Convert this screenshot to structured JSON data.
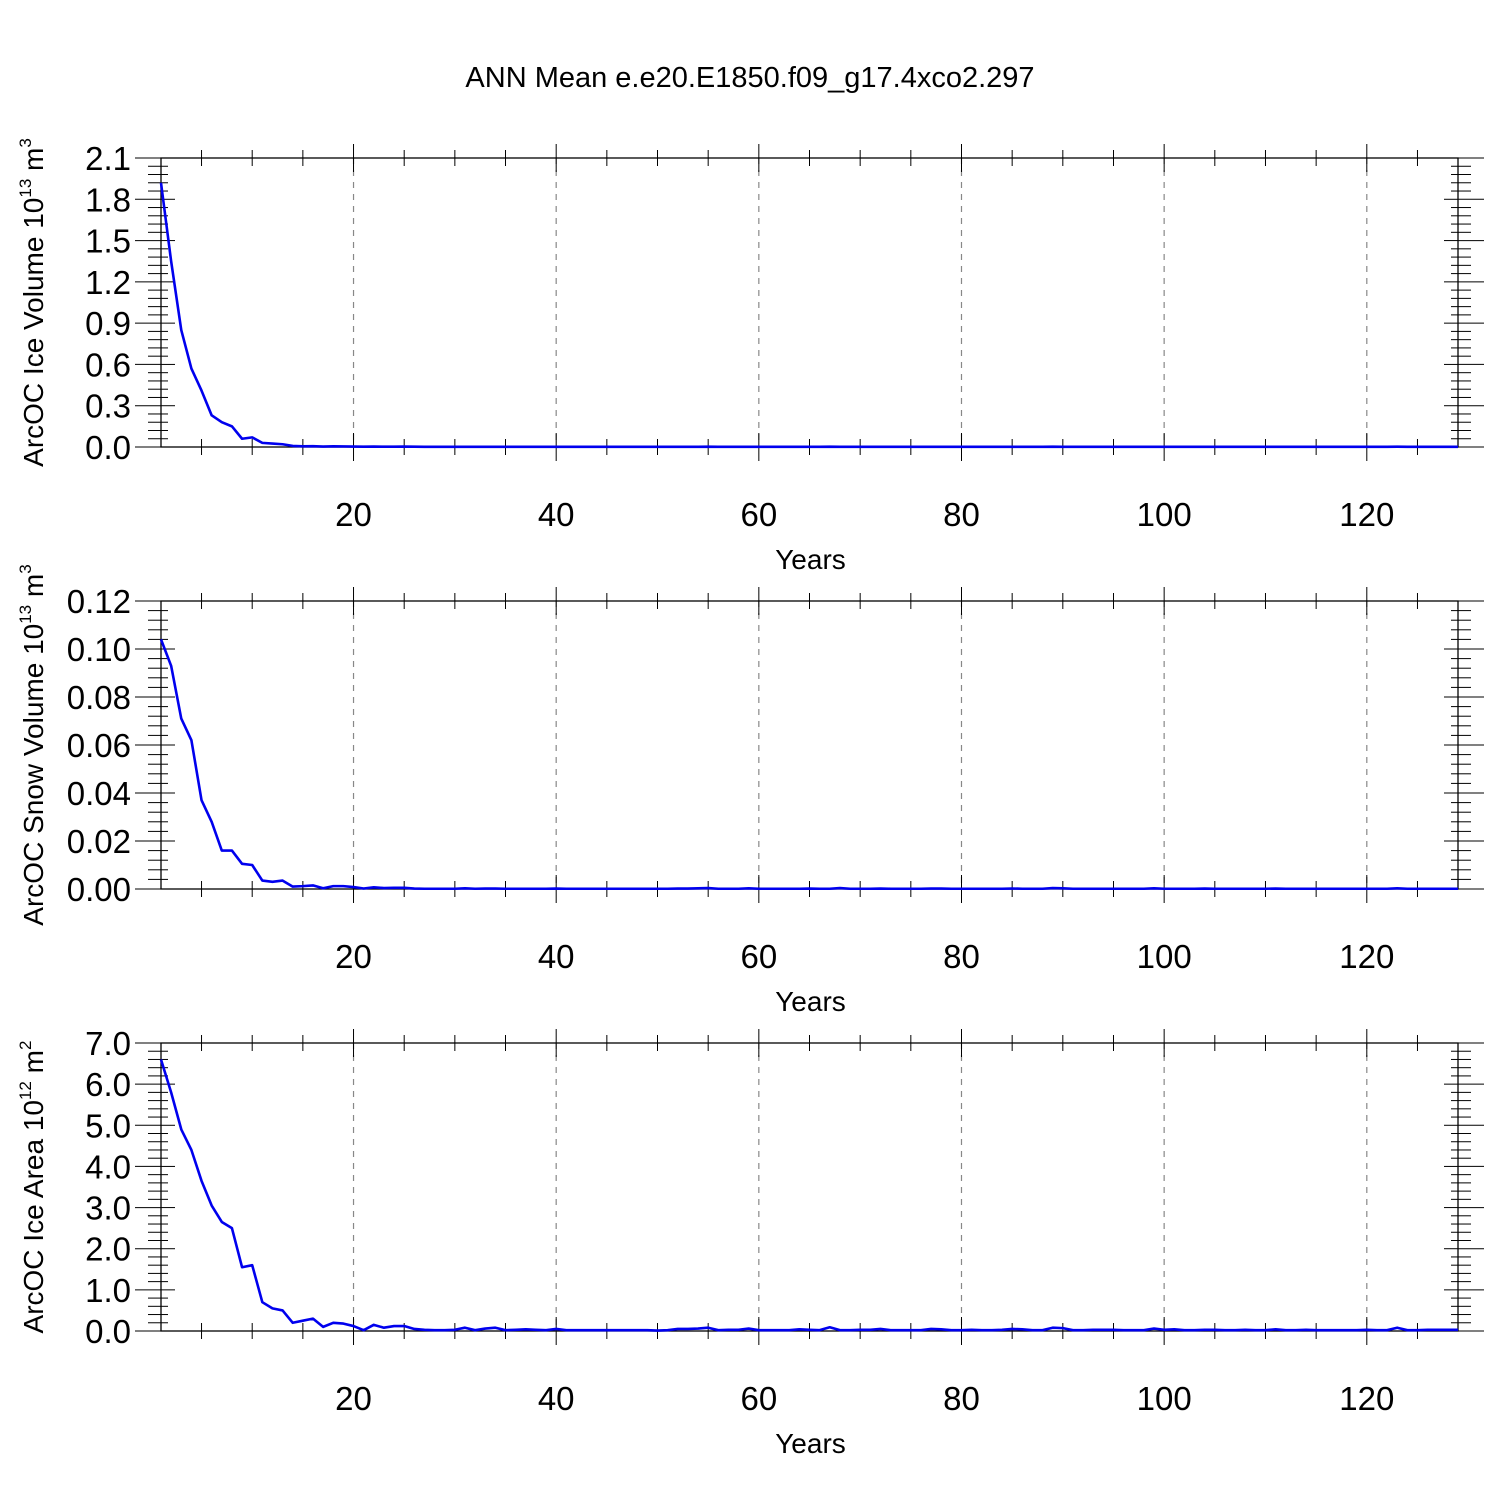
{
  "title": "ANN Mean e.e20.E1850.f09_g17.4xco2.297",
  "chart_data": [
    {
      "type": "line",
      "xlabel": "Years",
      "ylabel": {
        "text": "ArcOC Ice Volume 10",
        "exp": "13",
        "unit": " m",
        "unit_exp": "3"
      },
      "xlim": [
        1,
        129
      ],
      "ylim": [
        0,
        2.1
      ],
      "xticks": [
        20,
        40,
        60,
        80,
        100,
        120
      ],
      "yticks": [
        "0.0",
        "0.3",
        "0.6",
        "0.9",
        "1.2",
        "1.5",
        "1.8",
        "2.1"
      ],
      "grid": "vertical dashed at major x ticks",
      "color": "#0000ee",
      "x_start": 1,
      "values": [
        1.92,
        1.35,
        0.85,
        0.57,
        0.41,
        0.23,
        0.18,
        0.15,
        0.06,
        0.07,
        0.03,
        0.025,
        0.02,
        0.008,
        0.005,
        0.006,
        0.003,
        0.005,
        0.004,
        0.003,
        0.002,
        0.003,
        0.002,
        0.002,
        0.003,
        0.002,
        0.001,
        0.001,
        0.001,
        0.001,
        0.001,
        0.001,
        0.001,
        0.001,
        0.001,
        0.001,
        0.001,
        0.001,
        0.001,
        0.001,
        0.001,
        0.001,
        0.001,
        0.001,
        0.001,
        0.001,
        0.001,
        0.001,
        0.001,
        0.001,
        0.001,
        0.001,
        0.001,
        0.001,
        0.002,
        0.001,
        0.001,
        0.001,
        0.001,
        0.001,
        0.001,
        0.001,
        0.001,
        0.001,
        0.001,
        0.001,
        0.002,
        0.001,
        0.001,
        0.001,
        0.001,
        0.001,
        0.001,
        0.001,
        0.001,
        0.001,
        0.001,
        0.001,
        0.001,
        0.001,
        0.001,
        0.001,
        0.001,
        0.001,
        0.001,
        0.001,
        0.001,
        0.001,
        0.002,
        0.001,
        0.001,
        0.001,
        0.001,
        0.001,
        0.001,
        0.001,
        0.001,
        0.001,
        0.001,
        0.001,
        0.001,
        0.001,
        0.001,
        0.001,
        0.001,
        0.001,
        0.001,
        0.001,
        0.001,
        0.001,
        0.001,
        0.001,
        0.001,
        0.001,
        0.001,
        0.001,
        0.001,
        0.001,
        0.001,
        0.001,
        0.001,
        0.001,
        0.002,
        0.001,
        0.001,
        0.001,
        0.001,
        0.001,
        0.001
      ]
    },
    {
      "type": "line",
      "xlabel": "Years",
      "ylabel": {
        "text": "ArcOC Snow Volume 10",
        "exp": "13",
        "unit": " m",
        "unit_exp": "3"
      },
      "xlim": [
        1,
        129
      ],
      "ylim": [
        0,
        0.12
      ],
      "xticks": [
        20,
        40,
        60,
        80,
        100,
        120
      ],
      "yticks": [
        "0.00",
        "0.02",
        "0.04",
        "0.06",
        "0.08",
        "0.10",
        "0.12"
      ],
      "grid": "vertical dashed at major x ticks",
      "color": "#0000ee",
      "x_start": 1,
      "values": [
        0.104,
        0.093,
        0.071,
        0.062,
        0.037,
        0.028,
        0.016,
        0.016,
        0.0105,
        0.01,
        0.0035,
        0.003,
        0.0035,
        0.001,
        0.0012,
        0.0015,
        0.0003,
        0.0012,
        0.0012,
        0.0008,
        0.0002,
        0.0007,
        0.0004,
        0.0005,
        0.0005,
        0.0002,
        0.0001,
        0.0001,
        0.0001,
        0.0001,
        0.0003,
        0.0001,
        0.0002,
        0.0002,
        0.0001,
        0.0001,
        0.0001,
        0.0001,
        0.0001,
        0.0002,
        0.0001,
        0.0001,
        0.0001,
        0.0001,
        0.0001,
        0.0001,
        0.0001,
        0.0001,
        0.0001,
        0.0001,
        0.0001,
        0.0002,
        0.0002,
        0.0003,
        0.0004,
        0.0001,
        0.0001,
        0.0001,
        0.0003,
        0.0001,
        0.0001,
        0.0001,
        0.0001,
        0.0001,
        0.0002,
        0.0001,
        0.0001,
        0.0004,
        0.0001,
        0.0001,
        0.0001,
        0.0002,
        0.0001,
        0.0001,
        0.0001,
        0.0001,
        0.0002,
        0.0002,
        0.0001,
        0.0001,
        0.0001,
        0.0001,
        0.0001,
        0.0001,
        0.0002,
        0.0001,
        0.0001,
        0.0001,
        0.0004,
        0.0003,
        0.0001,
        0.0001,
        0.0001,
        0.0001,
        0.0001,
        0.0001,
        0.0001,
        0.0001,
        0.0003,
        0.0001,
        0.0001,
        0.0001,
        0.0001,
        0.0002,
        0.0001,
        0.0001,
        0.0001,
        0.0001,
        0.0001,
        0.0001,
        0.0002,
        0.0001,
        0.0001,
        0.0001,
        0.0001,
        0.0001,
        0.0001,
        0.0001,
        0.0001,
        0.0001,
        0.0001,
        0.0001,
        0.0003,
        0.0001,
        0.0001,
        0.0001,
        0.0001,
        0.0001,
        0.0001
      ]
    },
    {
      "type": "line",
      "xlabel": "Years",
      "ylabel": {
        "text": "ArcOC Ice Area 10",
        "exp": "12",
        "unit": " m",
        "unit_exp": "2"
      },
      "xlim": [
        1,
        129
      ],
      "ylim": [
        0,
        7.0
      ],
      "xticks": [
        20,
        40,
        60,
        80,
        100,
        120
      ],
      "yticks": [
        "0.0",
        "1.0",
        "2.0",
        "3.0",
        "4.0",
        "5.0",
        "6.0",
        "7.0"
      ],
      "grid": "vertical dashed at major x ticks",
      "color": "#0000ee",
      "x_start": 1,
      "values": [
        6.6,
        5.8,
        4.9,
        4.4,
        3.65,
        3.05,
        2.65,
        2.5,
        1.55,
        1.6,
        0.7,
        0.55,
        0.5,
        0.2,
        0.25,
        0.3,
        0.1,
        0.2,
        0.18,
        0.12,
        0.02,
        0.15,
        0.08,
        0.12,
        0.12,
        0.05,
        0.03,
        0.02,
        0.02,
        0.03,
        0.08,
        0.02,
        0.06,
        0.08,
        0.02,
        0.03,
        0.04,
        0.03,
        0.02,
        0.05,
        0.02,
        0.02,
        0.02,
        0.02,
        0.02,
        0.02,
        0.02,
        0.02,
        0.02,
        0.01,
        0.02,
        0.05,
        0.05,
        0.06,
        0.08,
        0.02,
        0.03,
        0.03,
        0.06,
        0.02,
        0.02,
        0.02,
        0.02,
        0.04,
        0.03,
        0.02,
        0.09,
        0.02,
        0.02,
        0.03,
        0.03,
        0.05,
        0.02,
        0.02,
        0.02,
        0.02,
        0.05,
        0.04,
        0.02,
        0.02,
        0.03,
        0.02,
        0.02,
        0.03,
        0.05,
        0.04,
        0.02,
        0.02,
        0.08,
        0.07,
        0.02,
        0.02,
        0.03,
        0.03,
        0.03,
        0.02,
        0.02,
        0.02,
        0.06,
        0.03,
        0.04,
        0.02,
        0.02,
        0.03,
        0.03,
        0.02,
        0.02,
        0.03,
        0.02,
        0.02,
        0.04,
        0.02,
        0.02,
        0.03,
        0.02,
        0.02,
        0.02,
        0.02,
        0.02,
        0.03,
        0.02,
        0.02,
        0.08,
        0.02,
        0.02,
        0.03,
        0.03,
        0.03,
        0.03
      ]
    }
  ]
}
